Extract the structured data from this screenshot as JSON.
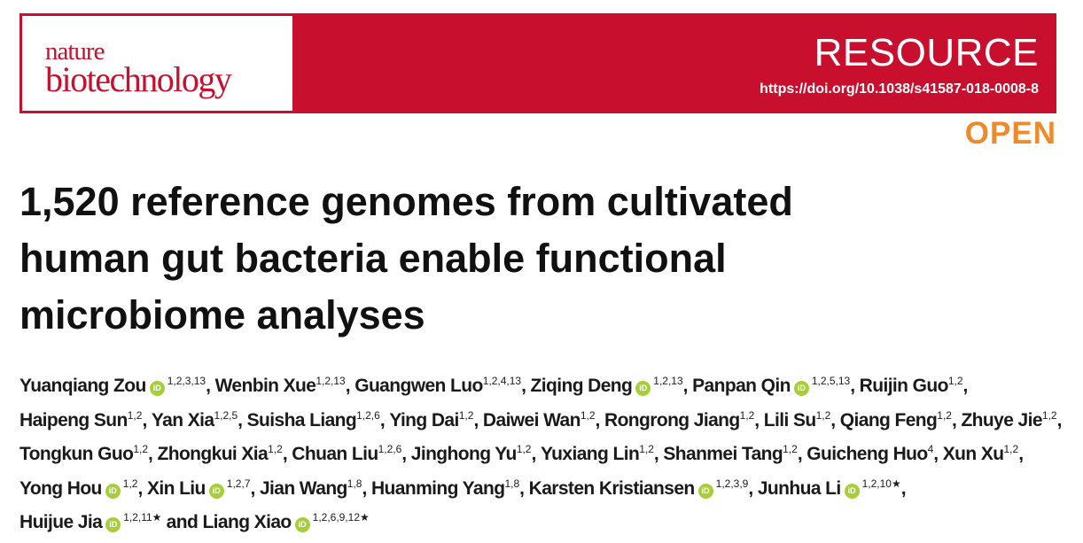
{
  "header": {
    "journal_line1": "nature",
    "journal_line2": "biotechnology",
    "section": "RESOURCE",
    "doi": "https://doi.org/10.1038/s41587-018-0008-8",
    "access": "OPEN"
  },
  "article": {
    "title": "1,520 reference genomes from cultivated human gut bacteria enable functional microbiome analyses"
  },
  "authors": [
    {
      "name": "Yuanqiang Zou",
      "orcid": true,
      "aff": "1,2,3,13",
      "sep": ", "
    },
    {
      "name": "Wenbin Xue",
      "orcid": false,
      "aff": "1,2,13",
      "sep": ", "
    },
    {
      "name": "Guangwen Luo",
      "orcid": false,
      "aff": "1,2,4,13",
      "sep": ", "
    },
    {
      "name": "Ziqing Deng",
      "orcid": true,
      "aff": "1,2,13",
      "sep": ", "
    },
    {
      "name": "Panpan Qin",
      "orcid": true,
      "aff": "1,2,5,13",
      "sep": ", "
    },
    {
      "name": "Ruijin Guo",
      "orcid": false,
      "aff": "1,2",
      "sep": ", "
    },
    {
      "name": "Haipeng Sun",
      "orcid": false,
      "aff": "1,2",
      "sep": ", "
    },
    {
      "name": "Yan Xia",
      "orcid": false,
      "aff": "1,2,5",
      "sep": ", "
    },
    {
      "name": "Suisha Liang",
      "orcid": false,
      "aff": "1,2,6",
      "sep": ", "
    },
    {
      "name": "Ying Dai",
      "orcid": false,
      "aff": "1,2",
      "sep": ", "
    },
    {
      "name": "Daiwei Wan",
      "orcid": false,
      "aff": "1,2",
      "sep": ", "
    },
    {
      "name": "Rongrong Jiang",
      "orcid": false,
      "aff": "1,2",
      "sep": ", "
    },
    {
      "name": "Lili Su",
      "orcid": false,
      "aff": "1,2",
      "sep": ", "
    },
    {
      "name": "Qiang Feng",
      "orcid": false,
      "aff": "1,2",
      "sep": ", "
    },
    {
      "name": "Zhuye Jie",
      "orcid": false,
      "aff": "1,2",
      "sep": ", "
    },
    {
      "name": "Tongkun Guo",
      "orcid": false,
      "aff": "1,2",
      "sep": ", "
    },
    {
      "name": "Zhongkui Xia",
      "orcid": false,
      "aff": "1,2",
      "sep": ", "
    },
    {
      "name": "Chuan Liu",
      "orcid": false,
      "aff": "1,2,6",
      "sep": ", "
    },
    {
      "name": "Jinghong Yu",
      "orcid": false,
      "aff": "1,2",
      "sep": ", "
    },
    {
      "name": "Yuxiang Lin",
      "orcid": false,
      "aff": "1,2",
      "sep": ", "
    },
    {
      "name": "Shanmei Tang",
      "orcid": false,
      "aff": "1,2",
      "sep": ", "
    },
    {
      "name": "Guicheng Huo",
      "orcid": false,
      "aff": "4",
      "sep": ", "
    },
    {
      "name": "Xun Xu",
      "orcid": false,
      "aff": "1,2",
      "sep": ", "
    },
    {
      "name": "Yong Hou",
      "orcid": true,
      "aff": "1,2",
      "sep": ", "
    },
    {
      "name": "Xin Liu",
      "orcid": true,
      "aff": "1,2,7",
      "sep": ", "
    },
    {
      "name": "Jian Wang",
      "orcid": false,
      "aff": "1,8",
      "sep": ", "
    },
    {
      "name": "Huanming Yang",
      "orcid": false,
      "aff": "1,8",
      "sep": ", "
    },
    {
      "name": "Karsten Kristiansen",
      "orcid": true,
      "aff": "1,2,3,9",
      "sep": ", "
    },
    {
      "name": "Junhua Li",
      "orcid": true,
      "aff": "1,2,10★",
      "sep": ", "
    },
    {
      "name": "Huijue Jia",
      "orcid": true,
      "aff": "1,2,11★",
      "sep": " and "
    },
    {
      "name": "Liang Xiao",
      "orcid": true,
      "aff": "1,2,6,9,12★",
      "sep": ""
    }
  ]
}
